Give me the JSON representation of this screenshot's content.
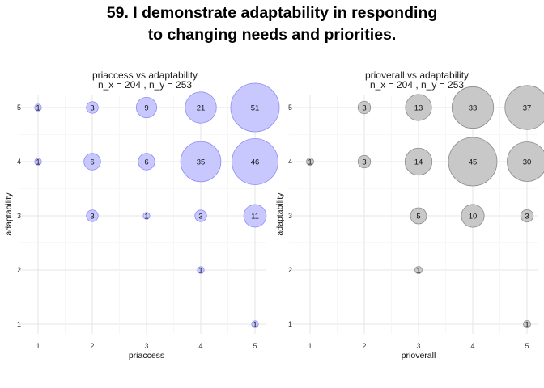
{
  "title_line1": "59. I demonstrate adaptability in responding",
  "title_line2": "to changing needs and priorities.",
  "chart_data": [
    {
      "type": "scatter",
      "subtype": "bubble",
      "title_line1": "priaccess vs adaptability",
      "title_line2": "n_x = 204 , n_y = 253",
      "xlabel": "priaccess",
      "ylabel": "adaptability",
      "xticks": [
        1,
        2,
        3,
        4,
        5
      ],
      "yticks": [
        1,
        2,
        3,
        4,
        5
      ],
      "xlim": [
        1,
        5
      ],
      "ylim": [
        1,
        5
      ],
      "grid": true,
      "fill_color": "#c8c8ff",
      "stroke_color": "#8c8cf2",
      "points": [
        {
          "x": 1,
          "y": 5,
          "n": 1
        },
        {
          "x": 2,
          "y": 5,
          "n": 3
        },
        {
          "x": 3,
          "y": 5,
          "n": 9
        },
        {
          "x": 4,
          "y": 5,
          "n": 21
        },
        {
          "x": 5,
          "y": 5,
          "n": 51
        },
        {
          "x": 1,
          "y": 4,
          "n": 1
        },
        {
          "x": 2,
          "y": 4,
          "n": 6
        },
        {
          "x": 3,
          "y": 4,
          "n": 6
        },
        {
          "x": 4,
          "y": 4,
          "n": 35
        },
        {
          "x": 5,
          "y": 4,
          "n": 46
        },
        {
          "x": 2,
          "y": 3,
          "n": 3
        },
        {
          "x": 3,
          "y": 3,
          "n": 1
        },
        {
          "x": 4,
          "y": 3,
          "n": 3
        },
        {
          "x": 5,
          "y": 3,
          "n": 11
        },
        {
          "x": 4,
          "y": 2,
          "n": 1
        },
        {
          "x": 5,
          "y": 1,
          "n": 1
        }
      ]
    },
    {
      "type": "scatter",
      "subtype": "bubble",
      "title_line1": "prioverall vs adaptability",
      "title_line2": "n_x = 204 , n_y = 253",
      "xlabel": "prioverall",
      "ylabel": "adaptability",
      "xticks": [
        1,
        2,
        3,
        4,
        5
      ],
      "yticks": [
        1,
        2,
        3,
        4,
        5
      ],
      "xlim": [
        1,
        5
      ],
      "ylim": [
        1,
        5
      ],
      "grid": true,
      "fill_color": "#c8c8c8",
      "stroke_color": "#8a8a8a",
      "points": [
        {
          "x": 2,
          "y": 5,
          "n": 3
        },
        {
          "x": 3,
          "y": 5,
          "n": 13
        },
        {
          "x": 4,
          "y": 5,
          "n": 33
        },
        {
          "x": 5,
          "y": 5,
          "n": 37
        },
        {
          "x": 1,
          "y": 4,
          "n": 1
        },
        {
          "x": 2,
          "y": 4,
          "n": 3
        },
        {
          "x": 3,
          "y": 4,
          "n": 14
        },
        {
          "x": 4,
          "y": 4,
          "n": 45
        },
        {
          "x": 5,
          "y": 4,
          "n": 30
        },
        {
          "x": 3,
          "y": 3,
          "n": 5
        },
        {
          "x": 4,
          "y": 3,
          "n": 10
        },
        {
          "x": 5,
          "y": 3,
          "n": 3
        },
        {
          "x": 3,
          "y": 2,
          "n": 1
        },
        {
          "x": 5,
          "y": 1,
          "n": 1
        }
      ]
    }
  ]
}
